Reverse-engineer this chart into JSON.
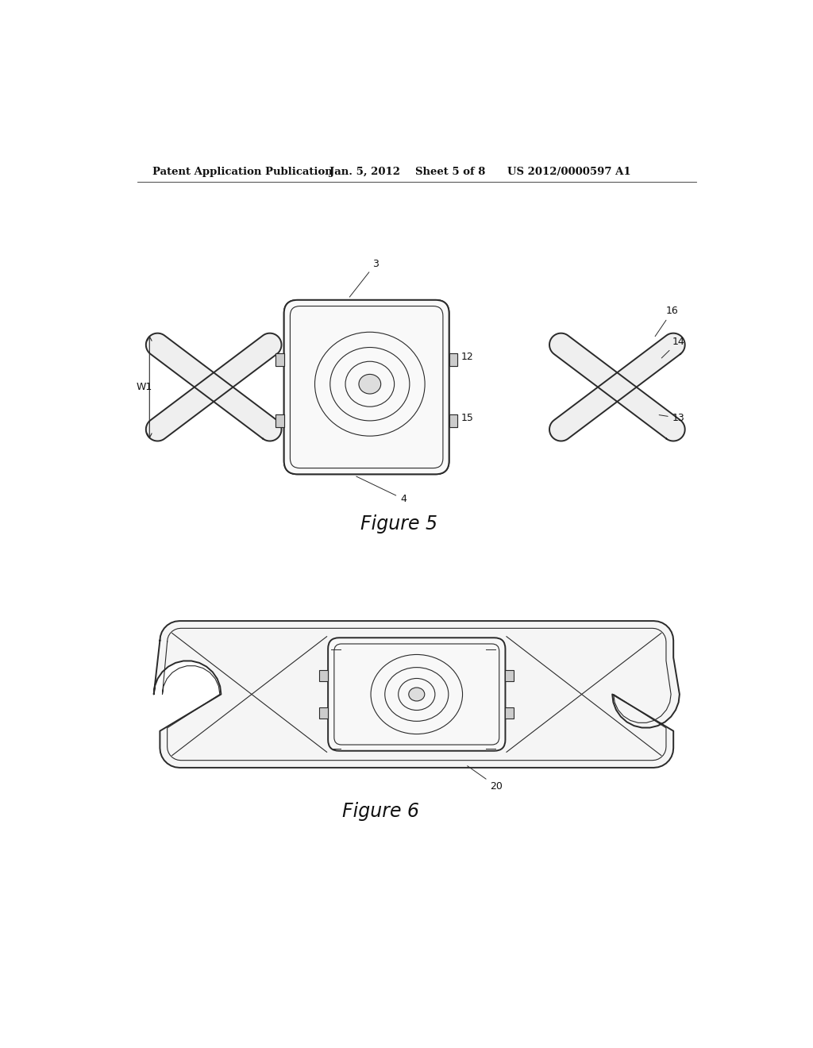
{
  "background_color": "#ffffff",
  "header_text": "Patent Application Publication",
  "header_date": "Jan. 5, 2012",
  "header_sheet": "Sheet 5 of 8",
  "header_patent": "US 2012/0000597 A1",
  "fig5_caption": "Figure 5",
  "fig6_caption": "Figure 6",
  "line_color": "#2a2a2a",
  "lw_main": 1.4,
  "lw_thin": 0.8,
  "lw_inner": 0.6
}
